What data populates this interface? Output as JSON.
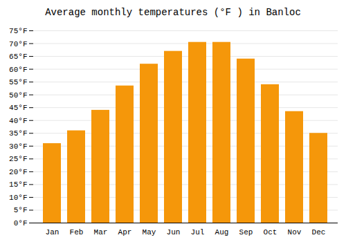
{
  "chart_data": {
    "type": "bar",
    "title": "Average monthly temperatures (°F ) in Banloc",
    "categories": [
      "Jan",
      "Feb",
      "Mar",
      "Apr",
      "May",
      "Jun",
      "Jul",
      "Aug",
      "Sep",
      "Oct",
      "Nov",
      "Dec"
    ],
    "values": [
      31,
      36,
      44,
      53.5,
      62,
      67,
      70.5,
      70.5,
      64,
      54,
      43.5,
      35
    ],
    "color": "#F5970A",
    "ylim": [
      0,
      75
    ],
    "yticks": [
      {
        "value": 0,
        "label": "0°F"
      },
      {
        "value": 5,
        "label": "5°F"
      },
      {
        "value": 10,
        "label": "10°F"
      },
      {
        "value": 15,
        "label": "15°F"
      },
      {
        "value": 20,
        "label": "20°F"
      },
      {
        "value": 25,
        "label": "25°F"
      },
      {
        "value": 30,
        "label": "30°F"
      },
      {
        "value": 35,
        "label": "35°F"
      },
      {
        "value": 40,
        "label": "40°F"
      },
      {
        "value": 45,
        "label": "45°F"
      },
      {
        "value": 50,
        "label": "50°F"
      },
      {
        "value": 55,
        "label": "55°F"
      },
      {
        "value": 60,
        "label": "60°F"
      },
      {
        "value": 65,
        "label": "65°F"
      },
      {
        "value": 70,
        "label": "70°F"
      },
      {
        "value": 75,
        "label": "75°F"
      }
    ],
    "grid": true
  }
}
